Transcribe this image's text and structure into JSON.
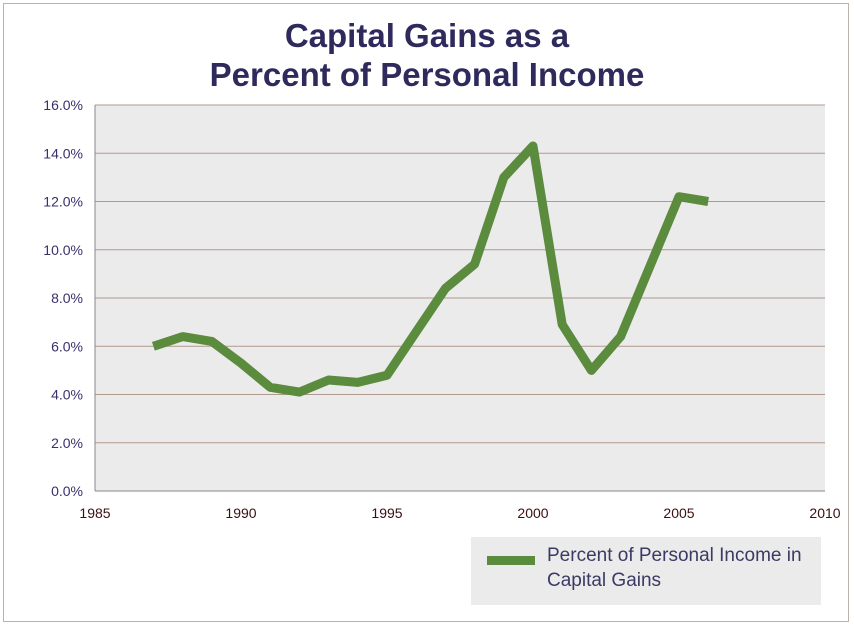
{
  "chart_data": {
    "type": "line",
    "title_line1": "Capital Gains as a",
    "title_line2": "Percent of Personal Income",
    "xlabel": "",
    "ylabel": "",
    "xlim": [
      1985,
      2010
    ],
    "ylim": [
      0,
      16
    ],
    "x_ticks": [
      "1985",
      "1990",
      "1995",
      "2000",
      "2005",
      "2010"
    ],
    "y_ticks": [
      "0.0%",
      "2.0%",
      "4.0%",
      "6.0%",
      "8.0%",
      "10.0%",
      "12.0%",
      "14.0%",
      "16.0%"
    ],
    "grid": "horizontal",
    "legend_position": "bottom-right",
    "series": [
      {
        "name": "Percent of Personal Income in Capital Gains",
        "color": "#5b8b3c",
        "x": [
          1987,
          1988,
          1989,
          1990,
          1991,
          1992,
          1993,
          1994,
          1995,
          1996,
          1997,
          1998,
          1999,
          2000,
          2001,
          2002,
          2003,
          2004,
          2005,
          2006
        ],
        "y": [
          6.0,
          6.4,
          6.2,
          5.3,
          4.3,
          4.1,
          4.6,
          4.5,
          4.8,
          6.6,
          8.4,
          9.4,
          13.0,
          14.3,
          6.9,
          5.0,
          6.4,
          9.3,
          12.2,
          12.0
        ]
      }
    ]
  }
}
